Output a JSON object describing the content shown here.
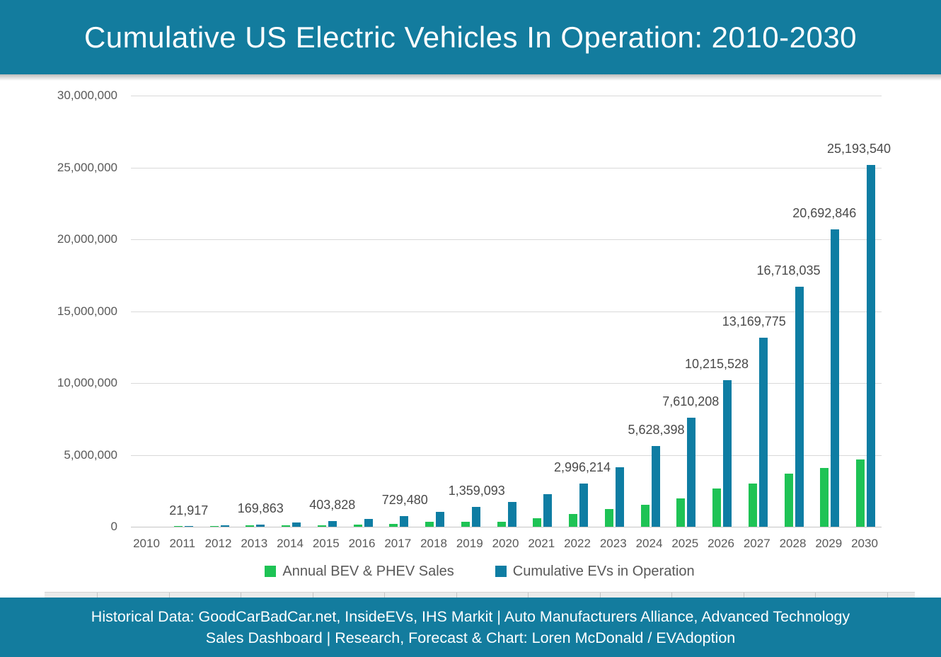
{
  "title": "Cumulative US Electric Vehicles In Operation: 2010-2030",
  "colors": {
    "header_teal": "#137c9e",
    "bar_teal": "#0e7da3",
    "bar_green": "#1ec355",
    "axis_text": "#595959",
    "data_label_text": "#4a4a4a",
    "gridline": "#d9d9d9",
    "baseline": "#c5c5c5",
    "title_text": "#ffffff",
    "footer_text": "#ffffff"
  },
  "legend": [
    {
      "label": "Annual BEV & PHEV Sales",
      "color": "#1ec355"
    },
    {
      "label": "Cumulative EVs in Operation",
      "color": "#0e7da3"
    }
  ],
  "footer": {
    "line1": "Historical Data: GoodCarBadCar.net, InsideEVs, IHS Markit | Auto Manufacturers Alliance, Advanced Technology",
    "line2": "Sales Dashboard | Research, Forecast & Chart: Loren McDonald / EVAdoption"
  },
  "chart_data": {
    "type": "bar",
    "title": "Cumulative US Electric Vehicles In Operation: 2010-2030",
    "xlabel": "",
    "ylabel": "",
    "ylim": [
      0,
      30000000
    ],
    "grid": true,
    "legend_position": "bottom",
    "categories": [
      "2010",
      "2011",
      "2012",
      "2013",
      "2014",
      "2015",
      "2016",
      "2017",
      "2018",
      "2019",
      "2020",
      "2021",
      "2022",
      "2023",
      "2024",
      "2025",
      "2026",
      "2027",
      "2028",
      "2029",
      "2030"
    ],
    "series": [
      {
        "name": "Annual BEV & PHEV Sales",
        "color": "#1ec355",
        "values": [
          345,
          17500,
          53000,
          97000,
          119000,
          114000,
          160000,
          200000,
          360000,
          330000,
          350000,
          580000,
          890000,
          1230000,
          1510000,
          1950000,
          2660000,
          3020000,
          3680000,
          4100000,
          4660000
        ]
      },
      {
        "name": "Cumulative EVs in Operation",
        "color": "#0e7da3",
        "values": [
          2000,
          21917,
          95000,
          169863,
          288000,
          403828,
          565000,
          729480,
          1030000,
          1359093,
          1720000,
          2270000,
          2996214,
          4150000,
          5628398,
          7610208,
          10215528,
          13169775,
          16718035,
          20692846,
          25193540
        ]
      }
    ],
    "y_axis_ticks": [
      "0",
      "5,000,000",
      "10,000,000",
      "15,000,000",
      "20,000,000",
      "25,000,000",
      "30,000,000"
    ],
    "data_labels": [
      {
        "year": "2011",
        "text": "21,917",
        "dx": 9
      },
      {
        "year": "2013",
        "text": "169,863",
        "dx": 9
      },
      {
        "year": "2015",
        "text": "403,828",
        "dx": 9
      },
      {
        "year": "2017",
        "text": "729,480",
        "dx": 10
      },
      {
        "year": "2019",
        "text": "1,359,093",
        "dx": 10
      },
      {
        "year": "2022",
        "text": "2,996,214",
        "dx": 7
      },
      {
        "year": "2024",
        "text": "5,628,398",
        "dx": 10
      },
      {
        "year": "2025",
        "text": "7,610,208",
        "dx": 8
      },
      {
        "year": "2026",
        "text": "10,215,528",
        "dx": -6
      },
      {
        "year": "2027",
        "text": "13,169,775",
        "dx": -4
      },
      {
        "year": "2028",
        "text": "16,718,035",
        "dx": -6
      },
      {
        "year": "2029",
        "text": "20,692,846",
        "dx": -6
      },
      {
        "year": "2030",
        "text": "25,193,540",
        "dx": -8
      }
    ]
  }
}
